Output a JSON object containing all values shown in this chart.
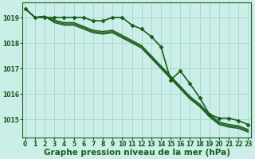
{
  "title": "Graphe pression niveau de la mer (hPa)",
  "background_color": "#cceee8",
  "grid_color": "#aad8d0",
  "line_color": "#1a5c1a",
  "x_ticks": [
    0,
    1,
    2,
    3,
    4,
    5,
    6,
    7,
    8,
    9,
    10,
    11,
    12,
    13,
    14,
    15,
    16,
    17,
    18,
    19,
    20,
    21,
    22,
    23
  ],
  "y_ticks": [
    1015,
    1016,
    1017,
    1018,
    1019
  ],
  "ylim": [
    1014.3,
    1019.6
  ],
  "xlim": [
    -0.3,
    23.3
  ],
  "series": [
    {
      "y": [
        1019.35,
        1019.0,
        1019.0,
        1019.0,
        1019.0,
        1019.0,
        1019.0,
        1018.87,
        1018.87,
        1019.0,
        1019.0,
        1018.7,
        1018.55,
        1018.25,
        1017.85,
        1016.55,
        1016.9,
        1016.4,
        1015.85,
        1015.2,
        1015.05,
        1015.05,
        1014.95,
        1014.8
      ],
      "marker": true,
      "lw": 1.2
    },
    {
      "y": [
        1019.35,
        1019.0,
        1019.05,
        1018.9,
        1018.8,
        1018.8,
        1018.65,
        1018.5,
        1018.45,
        1018.5,
        1018.3,
        1018.1,
        1017.9,
        1017.5,
        1017.1,
        1016.7,
        1016.3,
        1015.9,
        1015.6,
        1015.2,
        1014.9,
        1014.8,
        1014.75,
        1014.6
      ],
      "marker": false,
      "lw": 1.0
    },
    {
      "y": [
        1019.35,
        1019.0,
        1019.05,
        1018.85,
        1018.75,
        1018.75,
        1018.6,
        1018.45,
        1018.4,
        1018.45,
        1018.25,
        1018.05,
        1017.85,
        1017.45,
        1017.05,
        1016.65,
        1016.25,
        1015.85,
        1015.55,
        1015.15,
        1014.85,
        1014.75,
        1014.7,
        1014.55
      ],
      "marker": false,
      "lw": 1.0
    },
    {
      "y": [
        1019.35,
        1019.0,
        1019.05,
        1018.8,
        1018.7,
        1018.7,
        1018.55,
        1018.4,
        1018.35,
        1018.4,
        1018.2,
        1018.0,
        1017.8,
        1017.4,
        1017.0,
        1016.6,
        1016.2,
        1015.8,
        1015.5,
        1015.1,
        1014.8,
        1014.7,
        1014.65,
        1014.5
      ],
      "marker": false,
      "lw": 1.0
    }
  ],
  "marker_style": "D",
  "marker_size": 2.5,
  "title_fontsize": 7.5,
  "tick_fontsize": 5.5
}
